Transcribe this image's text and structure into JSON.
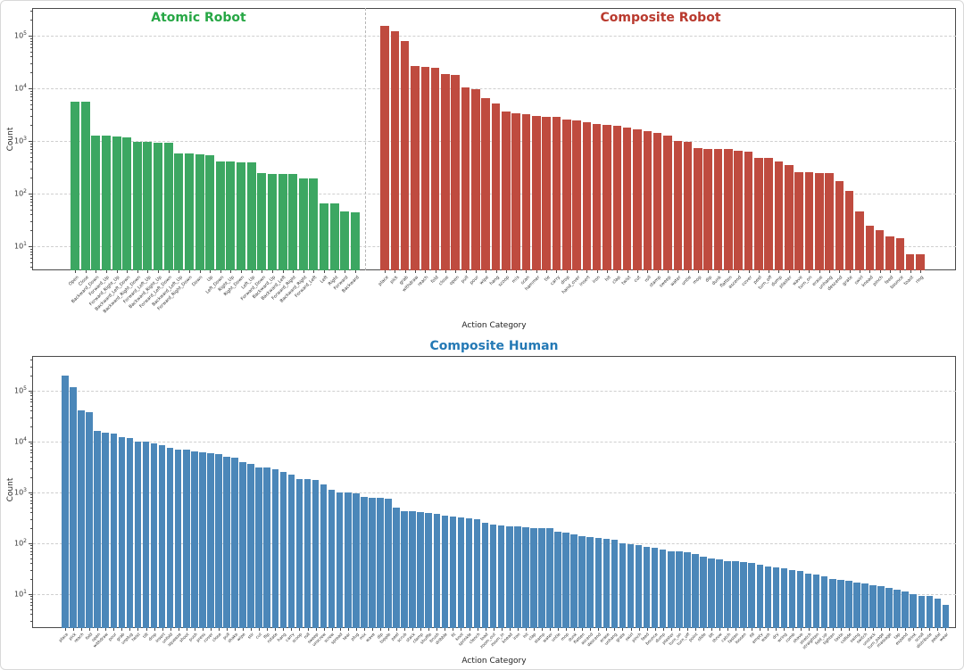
{
  "figure": {
    "xlabel": "Action Category",
    "ylabel": "Count",
    "ytick_exponents": [
      1,
      2,
      3,
      4,
      5
    ]
  },
  "chart_data": [
    {
      "type": "bar",
      "panel": "top",
      "title": "Atomic Robot",
      "color": "#3ca762",
      "title_color": "#27a745",
      "yscale": "log",
      "ylabel": "Count",
      "xlabel": "Action Category",
      "ylim": [
        3.5,
        330000
      ],
      "grid": "dashed-horizontal",
      "categories": [
        "Open",
        "Close",
        "Backward_Down",
        "Forward_Up",
        "Forward_Right_Up",
        "Backward_Left_Down",
        "Backward_Right_Down",
        "Forward_Left_Up",
        "Backward_Right_Up",
        "Forward_Left_Down",
        "Backward_Left_Up",
        "Forward_Right_Down",
        "Down",
        "Up",
        "Left_Down",
        "Right_Up",
        "Right_Down",
        "Left_Up",
        "Forward_Down",
        "Backward_Up",
        "Backward_Left",
        "Forward_Right",
        "Backward_Right",
        "Forward_Left",
        "Left",
        "Right",
        "Forward",
        "Backward"
      ],
      "values": [
        5600,
        5600,
        1250,
        1250,
        1230,
        1180,
        950,
        950,
        930,
        930,
        580,
        575,
        545,
        540,
        405,
        400,
        395,
        390,
        240,
        238,
        235,
        232,
        195,
        192,
        66,
        65,
        45,
        44
      ]
    },
    {
      "type": "bar",
      "panel": "top",
      "title": "Composite Robot",
      "color": "#bf4b3f",
      "title_color": "#b93a2e",
      "yscale": "log",
      "ylabel": "Count",
      "xlabel": "Action Category",
      "ylim": [
        3.5,
        330000
      ],
      "grid": "dashed-horizontal",
      "categories": [
        "place",
        "pick",
        "grab",
        "withdraw",
        "reach",
        "fold",
        "close",
        "open",
        "pull",
        "pour",
        "wipe",
        "hang",
        "scoop",
        "mix",
        "scan",
        "hammer",
        "tie",
        "carry",
        "drop",
        "hand_over",
        "insert",
        "iron",
        "hit",
        "clap",
        "twist",
        "cut",
        "roll",
        "stamp",
        "sweep",
        "water",
        "untie",
        "mop",
        "dip",
        "dunk",
        "flatten",
        "ascend",
        "cover",
        "peel",
        "turn_off",
        "dump",
        "plaster",
        "wave",
        "turn_on",
        "erase",
        "unhang",
        "descend",
        "grate",
        "swirl",
        "knead",
        "pinch",
        "feed",
        "bounce",
        "toast",
        "ring"
      ],
      "values": [
        150000,
        120000,
        80000,
        26000,
        25500,
        24000,
        18500,
        18000,
        10500,
        9500,
        6400,
        5200,
        3600,
        3400,
        3150,
        3000,
        2900,
        2800,
        2500,
        2450,
        2250,
        2100,
        2000,
        1900,
        1800,
        1650,
        1550,
        1400,
        1250,
        1000,
        950,
        720,
        710,
        700,
        690,
        660,
        620,
        480,
        470,
        400,
        350,
        255,
        250,
        245,
        240,
        175,
        110,
        45,
        24,
        20,
        15,
        14,
        7,
        7
      ]
    },
    {
      "type": "bar",
      "panel": "bottom",
      "title": "Composite Human",
      "color": "#4b87b9",
      "title_color": "#2479b5",
      "yscale": "log",
      "ylabel": "Count",
      "xlabel": "Action Category",
      "ylim": [
        2.1,
        440000
      ],
      "grid": "dashed-horizontal",
      "categories": [
        "place",
        "pick",
        "reach",
        "fold",
        "open",
        "withdraw",
        "pour",
        "grab",
        "unplug",
        "twist",
        "tilt",
        "drop",
        "insert",
        "unfold",
        "squeeze",
        "shoot",
        "push",
        "press",
        "cover",
        "close",
        "pull",
        "shake",
        "wipe",
        "stir",
        "cut",
        "flip",
        "rotate",
        "hang",
        "carry",
        "scoop",
        "roll",
        "sweep",
        "unscrew",
        "screw",
        "spread",
        "tear",
        "plug",
        "mix",
        "wave",
        "dip",
        "topple",
        "peel",
        "scrub",
        "stack",
        "clamp",
        "shuffle",
        "brush",
        "dribble",
        "fit",
        "knot",
        "sprinkle",
        "clench",
        "load",
        "zoom_out",
        "zoom_in",
        "knead",
        "iron",
        "hit",
        "clap",
        "stamp",
        "water",
        "untie",
        "mop",
        "dunk",
        "flatten",
        "ascend",
        "descend",
        "erase",
        "unhang",
        "grate",
        "swirl",
        "pinch",
        "feed",
        "bounce",
        "dump",
        "plaster",
        "turn_on",
        "turn_off",
        "point",
        "slide",
        "lift",
        "throw",
        "catch",
        "fasten",
        "loosen",
        "fill",
        "empty",
        "wash",
        "dry",
        "wring",
        "comb",
        "shave",
        "stretch",
        "straighten",
        "fold_up",
        "tighten",
        "taste",
        "collide",
        "swing",
        "switch",
        "unstack",
        "turn_page",
        "massage",
        "tap",
        "expand",
        "drink",
        "scroll",
        "distribute",
        "pedal",
        "wear"
      ],
      "values": [
        200000,
        115000,
        40000,
        38000,
        16000,
        15000,
        14500,
        12000,
        11800,
        10000,
        9800,
        9200,
        8400,
        7500,
        7000,
        6900,
        6300,
        6200,
        5800,
        5700,
        4900,
        4800,
        3900,
        3600,
        3100,
        3050,
        2800,
        2500,
        2200,
        1850,
        1800,
        1750,
        1400,
        1100,
        1000,
        980,
        950,
        800,
        790,
        780,
        760,
        500,
        430,
        420,
        400,
        390,
        370,
        350,
        330,
        320,
        310,
        300,
        250,
        230,
        220,
        215,
        210,
        205,
        200,
        198,
        195,
        170,
        160,
        150,
        135,
        130,
        125,
        120,
        115,
        100,
        95,
        90,
        85,
        80,
        75,
        70,
        68,
        65,
        60,
        55,
        50,
        48,
        45,
        44,
        42,
        40,
        38,
        35,
        33,
        32,
        30,
        28,
        25,
        24,
        22,
        20,
        19,
        18,
        17,
        16,
        15,
        14,
        13,
        12,
        11,
        10,
        9,
        9,
        8,
        6
      ]
    }
  ]
}
